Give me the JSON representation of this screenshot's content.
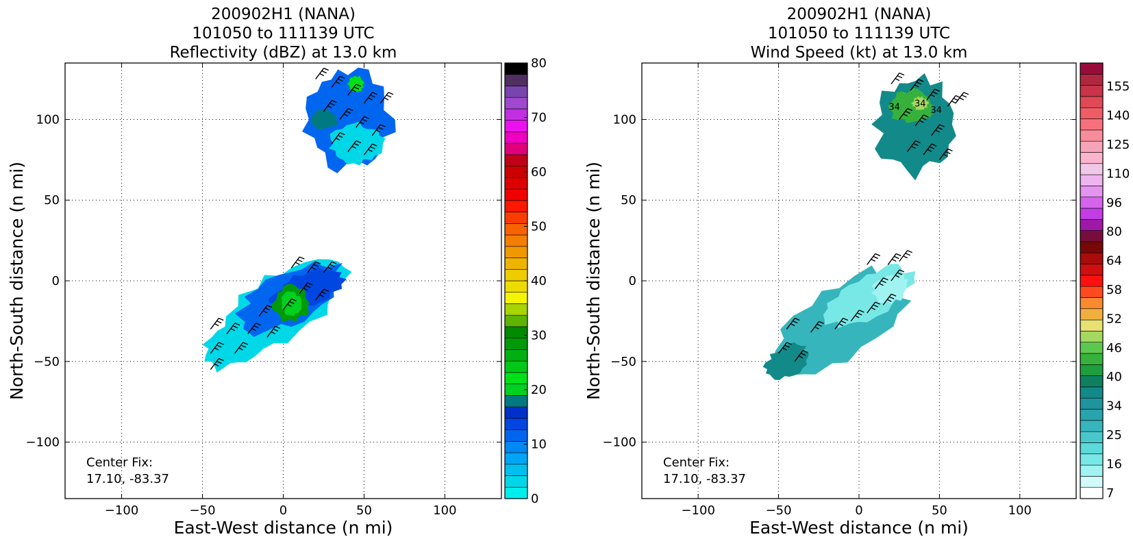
{
  "chart_data": [
    {
      "type": "heatmap",
      "title_lines": [
        "200902H1 (NANA)",
        "101050 to 111139 UTC",
        "Reflectivity (dBZ) at 13.0 km"
      ],
      "xlabel": "East-West distance (n mi)",
      "ylabel": "North-South distance (n mi)",
      "xlim": [
        -135,
        135
      ],
      "ylim": [
        -135,
        135
      ],
      "xticks": [
        -100,
        -50,
        0,
        50,
        100
      ],
      "yticks": [
        -100,
        -50,
        0,
        50,
        100
      ],
      "grid": true,
      "annotation": [
        "Center Fix:",
        "17.10, -83.37"
      ],
      "colorbar": {
        "min": 0,
        "max": 80,
        "tick_values": [
          0,
          10,
          20,
          30,
          40,
          50,
          60,
          70,
          80
        ],
        "colors": [
          "#00eeee",
          "#00d8e8",
          "#00c0f0",
          "#00a6f6",
          "#0088f4",
          "#0066f0",
          "#0046e0",
          "#0030c8",
          "#007a80",
          "#00d020",
          "#00e018",
          "#00c818",
          "#00b010",
          "#009a08",
          "#008a00",
          "#5fb400",
          "#a8d400",
          "#f4f400",
          "#eedc00",
          "#eecc00",
          "#eeb400",
          "#f09800",
          "#f47e00",
          "#f86200",
          "#fa3c00",
          "#ff1800",
          "#f20000",
          "#de0000",
          "#cc0000",
          "#c00018",
          "#e0007c",
          "#f000c0",
          "#ec10f0",
          "#c030e0",
          "#a048d0",
          "#7a44ae",
          "#503060",
          "#000000"
        ]
      },
      "echo_regions": [
        {
          "label": "northern band",
          "center": [
            42,
            100
          ],
          "extent": "approx x 12 to 66, y 66 to 132"
        },
        {
          "label": "core",
          "center": [
            0,
            -12
          ],
          "extent": "approx x -55 to 40, y -68 to 12"
        }
      ]
    },
    {
      "type": "heatmap",
      "title_lines": [
        "200902H1 (NANA)",
        "101050 to 111139 UTC",
        "Wind Speed (kt) at 13.0 km"
      ],
      "xlabel": "East-West distance (n mi)",
      "ylabel": "North-South distance (n mi)",
      "xlim": [
        -135,
        135
      ],
      "ylim": [
        -135,
        135
      ],
      "xticks": [
        -100,
        -50,
        0,
        50,
        100
      ],
      "yticks": [
        -100,
        -50,
        0,
        50,
        100
      ],
      "grid": true,
      "annotation": [
        "Center Fix:",
        "17.10, -83.37"
      ],
      "colorbar": {
        "min": 7,
        "max": 165,
        "tick_labels": [
          "7",
          "16",
          "25",
          "34",
          "40",
          "46",
          "52",
          "58",
          "64",
          "80",
          "96",
          "110",
          "125",
          "140",
          "155"
        ],
        "colors": [
          "#ffffff",
          "#d0fbf8",
          "#a0f3f0",
          "#78e8e6",
          "#5cdada",
          "#48c8cc",
          "#36b6bc",
          "#28a4ac",
          "#1e949c",
          "#138a8a",
          "#0e8060",
          "#1e9e3c",
          "#36b23c",
          "#5cc850",
          "#a4d860",
          "#e8e070",
          "#f0b040",
          "#f88a30",
          "#ff4a20",
          "#ff1010",
          "#d01010",
          "#a80c0c",
          "#780808",
          "#780c3c",
          "#a018a8",
          "#c43ce4",
          "#d464ec",
          "#e494ee",
          "#eeb4ee",
          "#f0c8e8",
          "#fcb4cc",
          "#f8a4b8",
          "#f88c9c",
          "#f8707c",
          "#f05c64",
          "#e04a56",
          "#c8344a",
          "#b02840",
          "#980c3c"
        ]
      },
      "echo_regions": [
        {
          "label": "northern band",
          "center": [
            35,
            100
          ],
          "extent": "approx x 10 to 60, y 66 to 127"
        },
        {
          "label": "core",
          "center": [
            -10,
            -25
          ],
          "extent": "approx x -55 to 35, y -63 to 10"
        }
      ],
      "contour_labels": [
        "34",
        "34",
        "34"
      ]
    }
  ]
}
